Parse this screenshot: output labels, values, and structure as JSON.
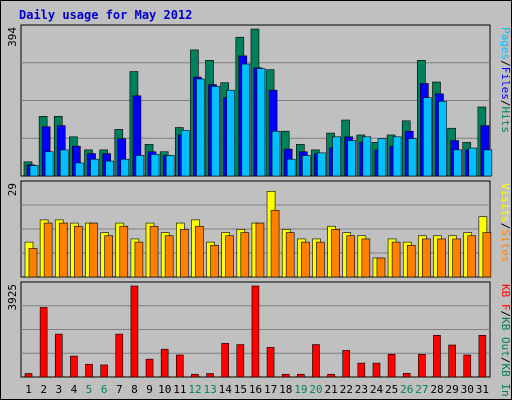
{
  "title": "Daily usage for May 2012",
  "colors": {
    "pages": "#00c0ff",
    "files": "#0000ff",
    "hits": "#00805c",
    "visits": "#ffff00",
    "sites": "#ff8000",
    "kb_out": "#00805c",
    "kb_in": "#00805c",
    "kb_f": "#ff0000",
    "weekend_day_label": "#00805c"
  },
  "chart_data": [
    {
      "type": "bar",
      "name": "hits-files-pages",
      "y_max_label": "394",
      "ylim": [
        0,
        394
      ],
      "right_label_parts": [
        "Pages",
        "/",
        "Files",
        "/",
        "Hits"
      ],
      "series": [
        {
          "name": "Hits",
          "values": [
            38,
            160,
            160,
            105,
            70,
            70,
            125,
            280,
            85,
            65,
            130,
            338,
            310,
            250,
            372,
            394,
            285,
            120,
            85,
            70,
            115,
            150,
            110,
            90,
            110,
            148,
            310,
            252,
            128,
            90,
            185
          ]
        },
        {
          "name": "Files",
          "values": [
            30,
            132,
            135,
            80,
            60,
            60,
            100,
            215,
            65,
            55,
            110,
            265,
            245,
            210,
            322,
            290,
            230,
            72,
            65,
            60,
            75,
            105,
            90,
            70,
            80,
            120,
            248,
            220,
            95,
            70,
            135
          ]
        },
        {
          "name": "Pages",
          "values": [
            28,
            65,
            70,
            35,
            45,
            40,
            45,
            55,
            58,
            55,
            122,
            260,
            240,
            230,
            300,
            288,
            120,
            45,
            55,
            62,
            105,
            95,
            105,
            100,
            105,
            100,
            210,
            200,
            70,
            75,
            70
          ]
        }
      ]
    },
    {
      "type": "bar",
      "name": "visits-sites",
      "y_max_label": "29",
      "ylim": [
        0,
        29
      ],
      "right_label_parts": [
        "Visits",
        "/",
        "Sites"
      ],
      "series": [
        {
          "name": "Visits",
          "values": [
            11,
            18,
            18,
            17,
            17,
            14,
            17,
            12,
            17,
            14,
            17,
            18,
            11,
            14,
            15,
            17,
            27,
            15,
            12,
            12,
            16,
            14,
            13,
            6,
            12,
            11,
            13,
            13,
            13,
            14,
            19
          ]
        },
        {
          "name": "Sites",
          "values": [
            9,
            17,
            17,
            16,
            17,
            13,
            16,
            11,
            16,
            13,
            15,
            16,
            10,
            13,
            14,
            17,
            21,
            14,
            11,
            11,
            15,
            13,
            12,
            6,
            11,
            10,
            12,
            12,
            12,
            13,
            14
          ]
        }
      ]
    },
    {
      "type": "bar",
      "name": "kbytes",
      "y_max_label": "3925",
      "ylim": [
        0,
        3925
      ],
      "right_label_parts": [
        "KB F",
        "/",
        "KB Out",
        "/",
        "KB In"
      ],
      "series": [
        {
          "name": "KB F",
          "values": [
            150,
            3000,
            1850,
            900,
            550,
            520,
            1850,
            3925,
            770,
            1200,
            950,
            120,
            150,
            1450,
            1400,
            3925,
            1280,
            120,
            120,
            1400,
            120,
            1150,
            600,
            600,
            980,
            160,
            980,
            1800,
            1380,
            950,
            1800
          ]
        }
      ],
      "x": [
        "1",
        "2",
        "3",
        "4",
        "5",
        "6",
        "7",
        "8",
        "9",
        "10",
        "11",
        "12",
        "13",
        "14",
        "15",
        "16",
        "17",
        "18",
        "19",
        "20",
        "21",
        "22",
        "23",
        "24",
        "25",
        "26",
        "27",
        "28",
        "29",
        "30",
        "31"
      ],
      "weekend_days": [
        "5",
        "6",
        "12",
        "13",
        "19",
        "20",
        "26",
        "27"
      ]
    }
  ]
}
